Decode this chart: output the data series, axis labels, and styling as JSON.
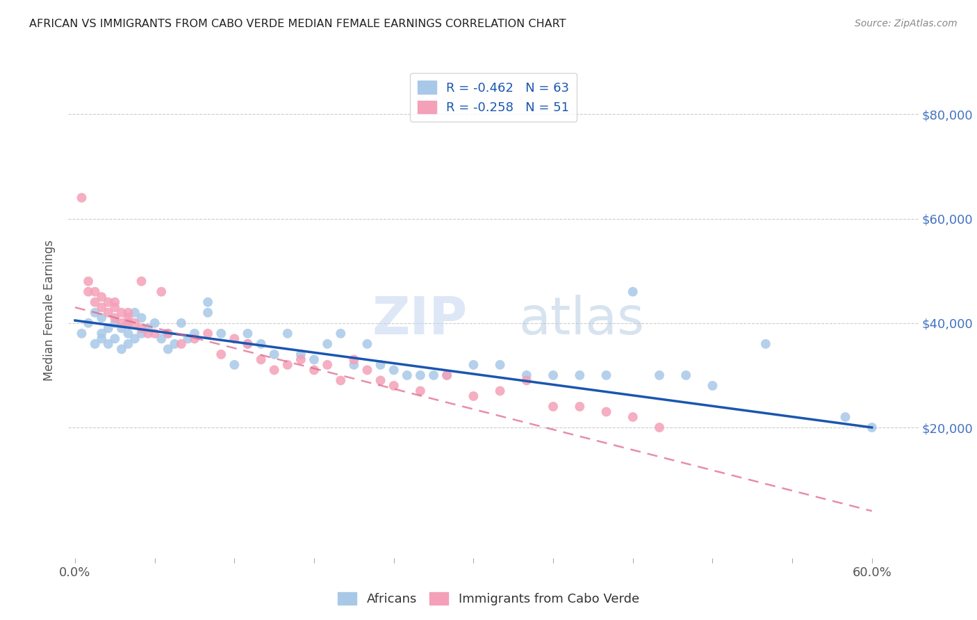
{
  "title": "AFRICAN VS IMMIGRANTS FROM CABO VERDE MEDIAN FEMALE EARNINGS CORRELATION CHART",
  "source": "Source: ZipAtlas.com",
  "ylabel": "Median Female Earnings",
  "xtick_labels_shown": [
    "0.0%",
    "60.0%"
  ],
  "xtick_vals_shown": [
    0.0,
    0.6
  ],
  "ytick_vals": [
    0,
    20000,
    40000,
    60000,
    80000
  ],
  "ytick_labels": [
    "",
    "$20,000",
    "$40,000",
    "$60,000",
    "$80,000"
  ],
  "ylim": [
    -5000,
    90000
  ],
  "xlim": [
    -0.005,
    0.635
  ],
  "legend_line1": "R = -0.462   N = 63",
  "legend_line2": "R = -0.258   N = 51",
  "africans_color": "#a8c8e8",
  "cabo_verde_color": "#f4a0b8",
  "trend_african_color": "#1a56b0",
  "trend_cabo_color": "#e06888",
  "watermark_zip": "ZIP",
  "watermark_atlas": "atlas",
  "africans_scatter_x": [
    0.005,
    0.01,
    0.015,
    0.015,
    0.02,
    0.02,
    0.02,
    0.025,
    0.025,
    0.03,
    0.03,
    0.035,
    0.035,
    0.04,
    0.04,
    0.04,
    0.045,
    0.045,
    0.05,
    0.05,
    0.055,
    0.06,
    0.065,
    0.07,
    0.07,
    0.075,
    0.08,
    0.085,
    0.09,
    0.1,
    0.1,
    0.11,
    0.12,
    0.13,
    0.13,
    0.14,
    0.15,
    0.16,
    0.17,
    0.18,
    0.19,
    0.2,
    0.21,
    0.22,
    0.23,
    0.24,
    0.25,
    0.26,
    0.27,
    0.28,
    0.3,
    0.32,
    0.34,
    0.36,
    0.38,
    0.4,
    0.42,
    0.44,
    0.46,
    0.48,
    0.52,
    0.58,
    0.6
  ],
  "africans_scatter_y": [
    38000,
    40000,
    36000,
    42000,
    38000,
    37000,
    41000,
    39000,
    36000,
    40000,
    37000,
    39000,
    35000,
    40000,
    38000,
    36000,
    42000,
    37000,
    38000,
    41000,
    39000,
    40000,
    37000,
    38000,
    35000,
    36000,
    40000,
    37000,
    38000,
    44000,
    42000,
    38000,
    32000,
    38000,
    36000,
    36000,
    34000,
    38000,
    34000,
    33000,
    36000,
    38000,
    32000,
    36000,
    32000,
    31000,
    30000,
    30000,
    30000,
    30000,
    32000,
    32000,
    30000,
    30000,
    30000,
    30000,
    46000,
    30000,
    30000,
    28000,
    36000,
    22000,
    20000
  ],
  "cabo_scatter_x": [
    0.005,
    0.01,
    0.01,
    0.015,
    0.015,
    0.02,
    0.02,
    0.025,
    0.025,
    0.03,
    0.03,
    0.03,
    0.035,
    0.035,
    0.04,
    0.04,
    0.04,
    0.045,
    0.05,
    0.05,
    0.055,
    0.06,
    0.065,
    0.07,
    0.08,
    0.09,
    0.1,
    0.11,
    0.12,
    0.13,
    0.14,
    0.15,
    0.16,
    0.17,
    0.18,
    0.19,
    0.2,
    0.21,
    0.22,
    0.23,
    0.24,
    0.26,
    0.28,
    0.3,
    0.32,
    0.34,
    0.36,
    0.38,
    0.4,
    0.42,
    0.44
  ],
  "cabo_scatter_y": [
    64000,
    48000,
    46000,
    46000,
    44000,
    45000,
    43000,
    44000,
    42000,
    44000,
    43000,
    41000,
    42000,
    40000,
    42000,
    41000,
    40000,
    40000,
    48000,
    39000,
    38000,
    38000,
    46000,
    38000,
    36000,
    37000,
    38000,
    34000,
    37000,
    36000,
    33000,
    31000,
    32000,
    33000,
    31000,
    32000,
    29000,
    33000,
    31000,
    29000,
    28000,
    27000,
    30000,
    26000,
    27000,
    29000,
    24000,
    24000,
    23000,
    22000,
    20000
  ],
  "af_trend_x": [
    0.0,
    0.6
  ],
  "af_trend_y": [
    40500,
    20000
  ],
  "cabo_trend_x": [
    0.0,
    0.6
  ],
  "cabo_trend_y": [
    43000,
    4000
  ]
}
